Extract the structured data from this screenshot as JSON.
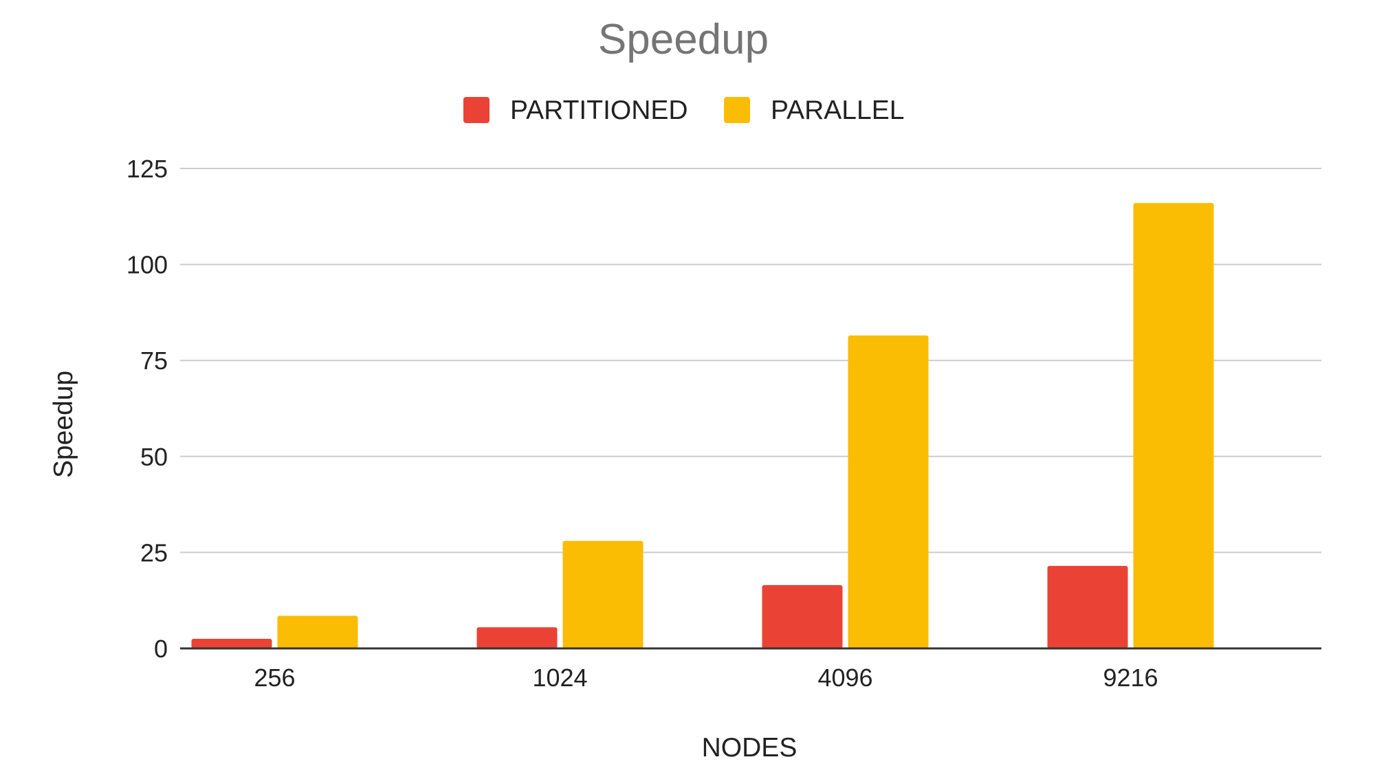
{
  "chart_data": {
    "type": "bar",
    "title": "Speedup",
    "xlabel": "NODES",
    "ylabel": "Speedup",
    "categories": [
      "256",
      "1024",
      "4096",
      "9216"
    ],
    "series": [
      {
        "name": "PARTITIONED",
        "color": "#ea4335",
        "values": [
          2.5,
          5.5,
          16.5,
          21.5
        ]
      },
      {
        "name": "PARALLEL",
        "color": "#fbbc04",
        "values": [
          8.5,
          28.0,
          81.5,
          116.0
        ]
      }
    ],
    "ylim": [
      0,
      125
    ],
    "yticks": [
      0,
      25,
      50,
      75,
      100,
      125
    ],
    "grid": true,
    "legend_position": "top"
  }
}
